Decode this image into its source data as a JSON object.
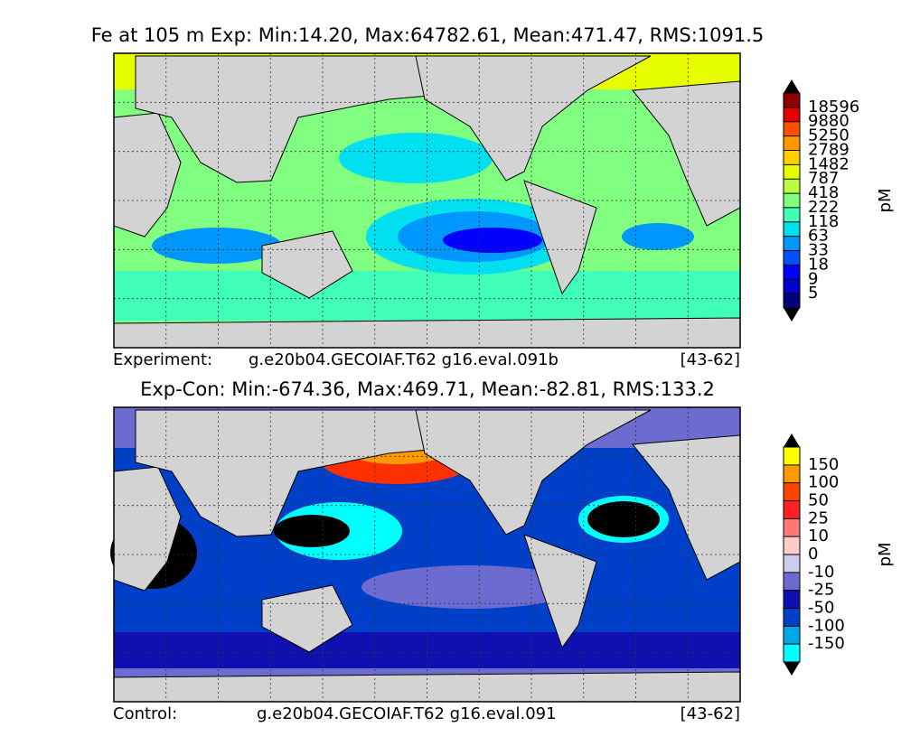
{
  "panels": [
    {
      "title": "Fe at 105 m Exp: Min:14.20, Max:64782.61, Mean:471.47, RMS:1091.5",
      "footer_label": "Experiment:",
      "case_name": "g.e20b04.GECOIAF.T62 g16.eval.091b",
      "years": "[43-62]",
      "colorbar": {
        "unit": "pM",
        "levels": [
          5,
          9,
          18,
          33,
          63,
          118,
          222,
          418,
          787,
          1482,
          2789,
          5250,
          9880,
          18596
        ],
        "colors": [
          "#00007f",
          "#0000c8",
          "#0000ff",
          "#0050ff",
          "#0098ff",
          "#00e0f0",
          "#40ffb8",
          "#80ff80",
          "#b8ff40",
          "#e8ff00",
          "#ffd000",
          "#ff9800",
          "#ff5000",
          "#e00000",
          "#8b0000"
        ]
      }
    },
    {
      "title": "Exp-Con: Min:-674.36, Max:469.71, Mean:-82.81, RMS:133.2",
      "footer_label": "Control:",
      "case_name": "g.e20b04.GECOIAF.T62 g16.eval.091",
      "years": "[43-62]",
      "colorbar": {
        "unit": "pM",
        "levels": [
          -150,
          -100,
          -50,
          -25,
          -10,
          0,
          10,
          25,
          50,
          100,
          150
        ],
        "colors": [
          "#00ffff",
          "#00a8e8",
          "#0040c8",
          "#1010b0",
          "#6c6cd0",
          "#ccccee",
          "#ffcccc",
          "#ff7878",
          "#ff2020",
          "#ff4400",
          "#ff9900",
          "#ffff00"
        ]
      }
    }
  ]
}
